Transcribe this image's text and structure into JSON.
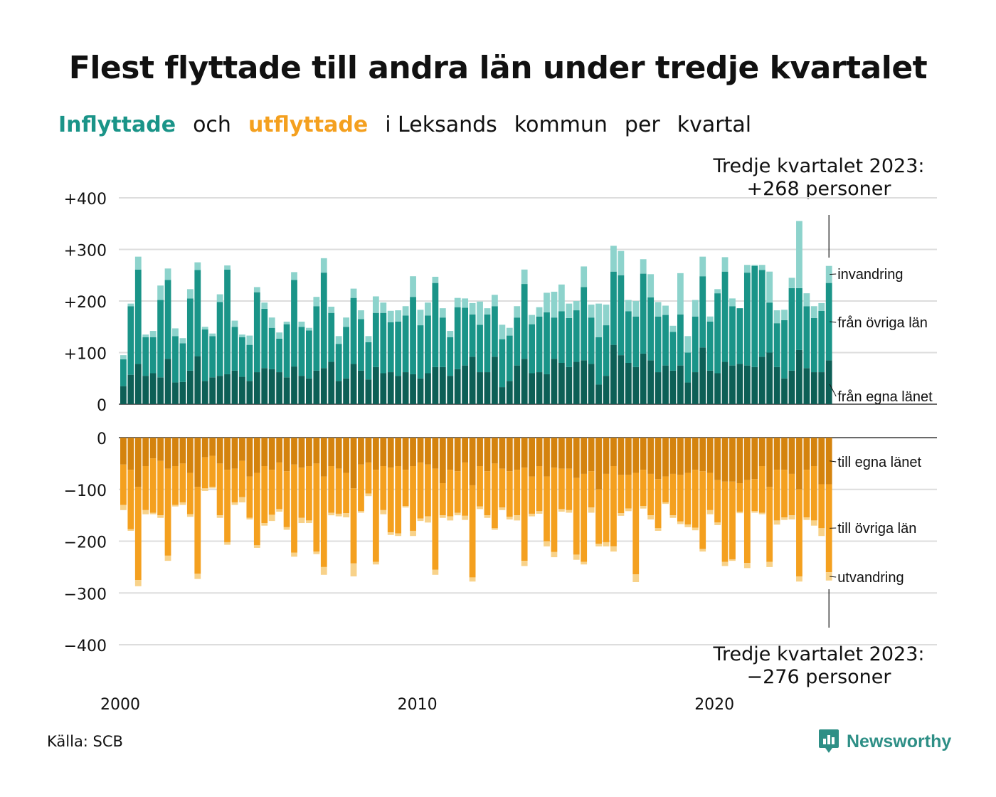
{
  "title": "Flest flyttade till andra län under tredje kvartalet",
  "subtitle": {
    "part1": "Inflyttade",
    "part2": "och",
    "part3": "utflyttade",
    "part4": "i Leksands",
    "part5": "kommun",
    "part6": "per",
    "part7": "kvartal"
  },
  "annotations": {
    "top_line1": "Tredje kvartalet 2023:",
    "top_line2": "+268 personer",
    "bottom_line1": "Tredje kvartalet 2023:",
    "bottom_line2": "−276 personer"
  },
  "source": "Källa: SCB",
  "brand": "Newsworthy",
  "colors": {
    "in_own": "#0d5f56",
    "in_other": "#1a9488",
    "in_immigration": "#8dd3cc",
    "out_own": "#d4830e",
    "out_other": "#f4a01f",
    "out_emigration": "#f8d28a"
  },
  "chart_data": {
    "type": "bar",
    "stacked": true,
    "x_start": "2000 Q1",
    "x_end": "2023 Q3",
    "xticks": [
      "2000",
      "2010",
      "2020"
    ],
    "xtick_years": [
      2000,
      2010,
      2020
    ],
    "panels": [
      {
        "name": "inflyttade",
        "yticks": [
          "0",
          "+100",
          "+200",
          "+300",
          "+400"
        ],
        "ytick_values": [
          0,
          100,
          200,
          300,
          400
        ],
        "ylim": [
          0,
          400
        ],
        "series": [
          {
            "name": "från egna länet",
            "values": [
              35,
              57,
              78,
              55,
              60,
              52,
              88,
              42,
              43,
              65,
              93,
              45,
              52,
              55,
              58,
              65,
              53,
              45,
              62,
              70,
              68,
              62,
              52,
              73,
              55,
              50,
              65,
              70,
              82,
              45,
              50,
              78,
              65,
              48,
              72,
              60,
              62,
              55,
              62,
              58,
              50,
              60,
              72,
              72,
              55,
              68,
              75,
              92,
              62,
              62,
              92,
              33,
              45,
              75,
              88,
              60,
              62,
              58,
              88,
              80,
              72,
              82,
              85,
              78,
              38,
              55,
              115,
              95,
              80,
              72,
              98,
              85,
              62,
              75,
              65,
              75,
              42,
              62,
              110,
              65,
              60,
              82,
              75,
              78,
              75,
              72,
              92,
              100,
              72,
              50,
              65,
              105,
              70,
              62,
              62,
              85
            ]
          },
          {
            "name": "från övriga län",
            "values": [
              52,
              133,
              183,
              75,
              70,
              150,
              153,
              90,
              75,
              140,
              167,
              100,
              80,
              143,
              203,
              85,
              77,
              70,
              155,
              115,
              80,
              65,
              103,
              168,
              95,
              93,
              125,
              185,
              95,
              72,
              100,
              128,
              100,
              72,
              105,
              117,
              97,
              105,
              110,
              150,
              103,
              112,
              163,
              96,
              75,
              120,
              112,
              82,
              92,
              112,
              98,
              93,
              88,
              93,
              145,
              95,
              108,
              120,
              80,
              100,
              95,
              100,
              142,
              90,
              92,
              98,
              142,
              155,
              100,
              98,
              155,
              122,
              108,
              98,
              75,
              99,
              58,
              108,
              138,
              95,
              155,
              175,
              115,
              108,
              180,
              196,
              168,
              97,
              85,
              113,
              160,
              120,
              120,
              105,
              119,
              150
            ]
          },
          {
            "name": "invandring",
            "values": [
              8,
              5,
              25,
              5,
              12,
              28,
              22,
              15,
              10,
              18,
              15,
              5,
              5,
              15,
              8,
              12,
              5,
              18,
              10,
              12,
              20,
              12,
              5,
              15,
              10,
              5,
              18,
              28,
              12,
              15,
              18,
              18,
              17,
              12,
              32,
              20,
              22,
              22,
              18,
              40,
              30,
              25,
              12,
              18,
              12,
              18,
              18,
              22,
              45,
              12,
              22,
              28,
              15,
              22,
              28,
              18,
              18,
              38,
              50,
              52,
              28,
              18,
              40,
              25,
              65,
              40,
              50,
              47,
              22,
              30,
              28,
              45,
              28,
              18,
              12,
              80,
              32,
              32,
              38,
              10,
              8,
              28,
              15,
              0,
              15,
              2,
              10,
              60,
              25,
              20,
              20,
              130,
              25,
              23,
              15,
              33
            ]
          }
        ]
      },
      {
        "name": "utflyttade",
        "yticks": [
          "0",
          "−100",
          "−200",
          "−300",
          "−400"
        ],
        "ytick_values": [
          0,
          -100,
          -200,
          -300,
          -400
        ],
        "ylim": [
          -400,
          0
        ],
        "series": [
          {
            "name": "till egna länet",
            "values": [
              -52,
              -62,
              -95,
              -55,
              -40,
              -45,
              -60,
              -55,
              -50,
              -68,
              -95,
              -38,
              -35,
              -50,
              -62,
              -60,
              -45,
              -75,
              -68,
              -55,
              -62,
              -48,
              -65,
              -52,
              -58,
              -55,
              -50,
              -75,
              -55,
              -60,
              -68,
              -98,
              -52,
              -48,
              -62,
              -55,
              -58,
              -55,
              -62,
              -55,
              -48,
              -52,
              -60,
              -88,
              -62,
              -65,
              -48,
              -92,
              -55,
              -65,
              -50,
              -60,
              -65,
              -62,
              -58,
              -75,
              -55,
              -75,
              -58,
              -60,
              -60,
              -78,
              -70,
              -65,
              -100,
              -70,
              -55,
              -72,
              -72,
              -68,
              -62,
              -70,
              -80,
              -75,
              -70,
              -72,
              -68,
              -62,
              -65,
              -68,
              -82,
              -85,
              -85,
              -88,
              -82,
              -80,
              -55,
              -95,
              -62,
              -62,
              -70,
              -100,
              -62,
              -55,
              -90,
              -90
            ]
          },
          {
            "name": "till övriga län",
            "values": [
              -78,
              -115,
              -180,
              -85,
              -105,
              -105,
              -168,
              -75,
              -75,
              -80,
              -168,
              -60,
              -60,
              -100,
              -140,
              -65,
              -70,
              -80,
              -140,
              -110,
              -87,
              -90,
              -108,
              -170,
              -97,
              -105,
              -170,
              -175,
              -90,
              -87,
              -78,
              -145,
              -90,
              -60,
              -178,
              -85,
              -125,
              -130,
              -70,
              -125,
              -108,
              -100,
              -195,
              -62,
              -90,
              -80,
              -103,
              -178,
              -78,
              -85,
              -125,
              -75,
              -88,
              -88,
              -180,
              -72,
              -87,
              -125,
              -163,
              -78,
              -80,
              -148,
              -170,
              -70,
              -105,
              -132,
              -155,
              -74,
              -65,
              -196,
              -70,
              -80,
              -95,
              -50,
              -80,
              -90,
              -100,
              -112,
              -150,
              -72,
              -82,
              -155,
              -150,
              -55,
              -160,
              -62,
              -90,
              -145,
              -98,
              -92,
              -80,
              -168,
              -92,
              -105,
              -85,
              -170
            ]
          },
          {
            "name": "utvandring",
            "values": [
              -10,
              -3,
              -12,
              -8,
              -3,
              -5,
              -10,
              -3,
              -5,
              -5,
              -10,
              -5,
              -3,
              -5,
              -5,
              -5,
              -10,
              -3,
              -5,
              -5,
              -12,
              -5,
              -5,
              -8,
              -10,
              -5,
              -5,
              -15,
              -5,
              -5,
              -8,
              -25,
              -3,
              -5,
              -5,
              -8,
              -5,
              -5,
              -3,
              -10,
              -5,
              -12,
              -10,
              -5,
              -8,
              -5,
              -8,
              -8,
              -5,
              -5,
              -3,
              -5,
              -5,
              -10,
              -10,
              -5,
              -5,
              -10,
              -10,
              -5,
              -5,
              -10,
              -5,
              -10,
              -5,
              -8,
              -10,
              -5,
              -5,
              -15,
              -5,
              -8,
              -5,
              -3,
              -5,
              -5,
              -5,
              -5,
              -5,
              -8,
              -5,
              -8,
              -3,
              -3,
              -10,
              -3,
              -3,
              -10,
              -8,
              -5,
              -8,
              -10,
              -5,
              -10,
              -15,
              -16
            ]
          }
        ]
      }
    ],
    "legend": "right, labels at bar end"
  }
}
